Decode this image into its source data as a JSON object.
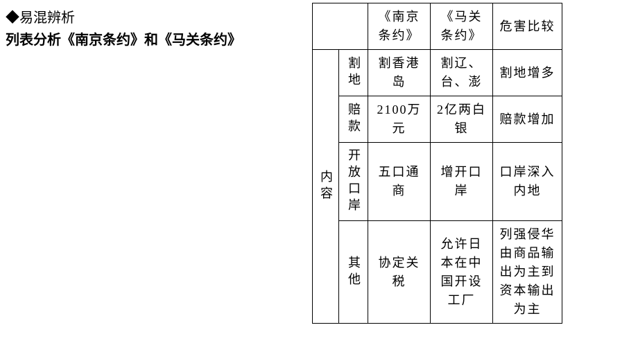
{
  "left": {
    "heading": "◆易混辨析",
    "subheading": "列表分析《南京条约》和《马关条约》"
  },
  "table": {
    "header": {
      "blank": "",
      "nanjing": "《南京条约》",
      "maguan": "《马关条约》",
      "harm": "危害比较"
    },
    "rowgroup_label": "内容",
    "rows": [
      {
        "cat": "割地",
        "nj": "割香港岛",
        "mg": "割辽、台、澎",
        "harm": "割地增多"
      },
      {
        "cat": "赔款",
        "nj": "2100万元",
        "mg": "2亿两白银",
        "harm": "赔款增加"
      },
      {
        "cat": "开放口岸",
        "nj": "五口通商",
        "mg": "增开口岸",
        "harm": "口岸深入内地"
      },
      {
        "cat": "其他",
        "nj": "协定关税",
        "mg": "允许日本在中国开设工厂",
        "harm": "列强侵华由商品输出为主到资本输出为主"
      }
    ]
  },
  "style": {
    "border_color": "#000000",
    "text_color": "#000000",
    "background": "#ffffff",
    "font_size_body": 18,
    "font_size_heading": 20
  }
}
